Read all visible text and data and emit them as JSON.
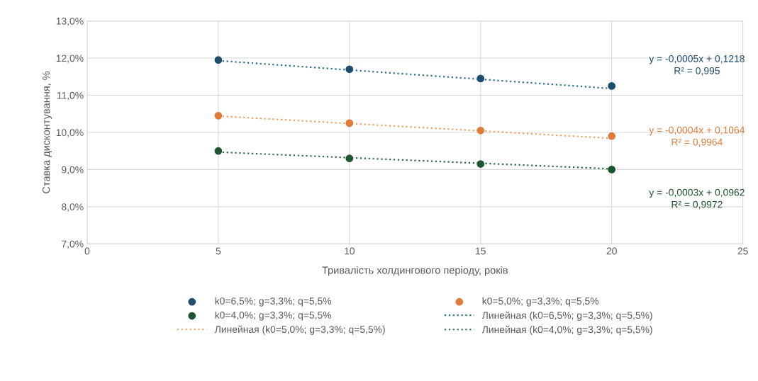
{
  "chart_data": {
    "type": "scatter",
    "xlabel": "Тривалість холдингового періоду, років",
    "ylabel": "Ставка дисконтування, %",
    "x": [
      5,
      10,
      15,
      20
    ],
    "series": [
      {
        "name": "k0=6,5%; g=3,3%; q=5,5%",
        "color": "#1f4e6e",
        "values": [
          11.95,
          11.7,
          11.45,
          11.25
        ]
      },
      {
        "name": "k0=5,0%; g=3,3%; q=5,5%",
        "color": "#e07b39",
        "values": [
          10.45,
          10.25,
          10.05,
          9.9
        ]
      },
      {
        "name": "k0=4,0%; g=3,3%; q=5,5%",
        "color": "#1e5631",
        "values": [
          9.5,
          9.3,
          9.15,
          9.0
        ]
      },
      {
        "name": "Линейная (k0=6,5%; g=3,3%; q=5,5%)",
        "type": "line",
        "line_style": "dotted",
        "marker": "none",
        "color": "#2f6f8f",
        "values": [
          11.93,
          11.68,
          11.43,
          11.18
        ]
      },
      {
        "name": "Линейная (k0=5,0%; g=3,3%; q=5,5%)",
        "type": "line",
        "line_style": "dotted",
        "marker": "none",
        "color": "#f0a060",
        "values": [
          10.44,
          10.24,
          10.04,
          9.84
        ]
      },
      {
        "name": "Линейная (k0=4,0%; g=3,3%; q=5,5%)",
        "type": "line",
        "line_style": "dotted",
        "marker": "none",
        "color": "#2e6b45",
        "values": [
          9.47,
          9.32,
          9.17,
          9.02
        ]
      }
    ],
    "marker": "circle",
    "xlim": [
      0,
      25
    ],
    "xticks": [
      0,
      5,
      10,
      15,
      20,
      25
    ],
    "ylim": [
      7,
      13
    ],
    "yticks": [
      {
        "value": 7,
        "label": "7,0%"
      },
      {
        "value": 8,
        "label": "8,0%"
      },
      {
        "value": 9,
        "label": "9,0%"
      },
      {
        "value": 10,
        "label": "10,0%"
      },
      {
        "value": 11,
        "label": "11,0%"
      },
      {
        "value": 12,
        "label": "12,0%"
      },
      {
        "value": 13,
        "label": "13,0%"
      }
    ],
    "annotations": [
      "y = -0,0005x + 0,1218\nR² = 0,995",
      "y = -0,0004x + 0,1064\nR² = 0,9964",
      "y = -0,0003x + 0,0962\nR² = 0,9972"
    ],
    "grid": true,
    "legend": "bottom"
  }
}
